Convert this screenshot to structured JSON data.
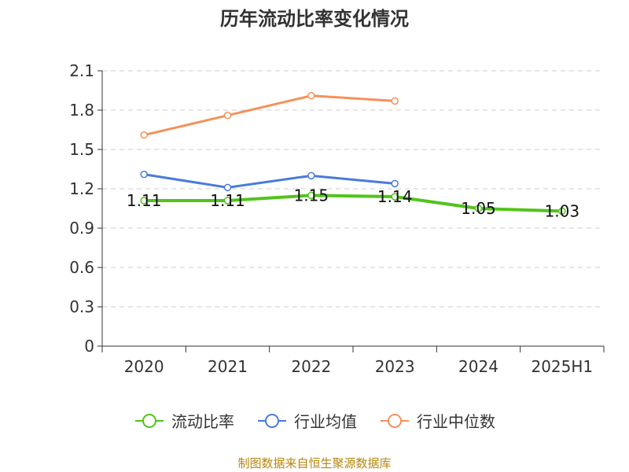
{
  "chart_data": {
    "type": "line",
    "title": "历年流动比率变化情况",
    "categories": [
      "2020",
      "2021",
      "2022",
      "2023",
      "2024",
      "2025H1"
    ],
    "yticks": [
      "0",
      "0.3",
      "0.6",
      "0.9",
      "1.2",
      "1.5",
      "1.8",
      "2.1"
    ],
    "ylim": [
      0,
      2.1
    ],
    "grid": true,
    "legend_position": "bottom",
    "series": [
      {
        "name": "流动比率",
        "color": "#52c41a",
        "values": [
          1.11,
          1.11,
          1.15,
          1.14,
          1.05,
          1.03
        ],
        "labels": [
          "1.11",
          "1.11",
          "1.15",
          "1.14",
          "1.05",
          "1.03"
        ]
      },
      {
        "name": "行业均值",
        "color": "#4a7bd9",
        "values": [
          1.31,
          1.21,
          1.3,
          1.24,
          null,
          null
        ]
      },
      {
        "name": "行业中位数",
        "color": "#f5915a",
        "values": [
          1.61,
          1.76,
          1.91,
          1.87,
          null,
          null
        ]
      }
    ]
  },
  "source": "制图数据来自恒生聚源数据库"
}
